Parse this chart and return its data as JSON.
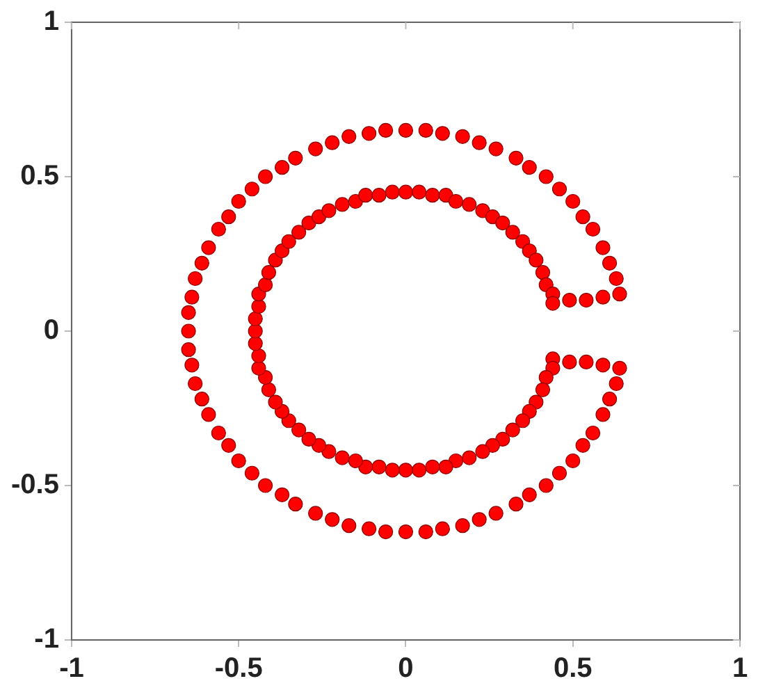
{
  "chart_data": {
    "type": "scatter",
    "marker": "circle",
    "grid": false,
    "xlim": [
      -1,
      1
    ],
    "ylim": [
      -1,
      1
    ],
    "xticks": [
      -1,
      -0.5,
      0,
      0.5,
      1
    ],
    "yticks": [
      -1,
      -0.5,
      0,
      0.5,
      1
    ],
    "series": [
      {
        "color": "#ff0000",
        "x": [
          0.64,
          0.63,
          0.61,
          0.59,
          0.56,
          0.53,
          0.5,
          0.46,
          0.42,
          0.37,
          0.33,
          0.27,
          0.22,
          0.17,
          0.11,
          0.06,
          0,
          -0.06,
          -0.11,
          -0.17,
          -0.22,
          -0.27,
          -0.33,
          -0.37,
          -0.42,
          -0.46,
          -0.5,
          -0.53,
          -0.56,
          -0.59,
          -0.61,
          -0.63,
          -0.64,
          -0.65,
          -0.65,
          -0.65,
          -0.64,
          -0.63,
          -0.61,
          -0.59,
          -0.56,
          -0.53,
          -0.5,
          -0.46,
          -0.42,
          -0.37,
          -0.33,
          -0.27,
          -0.22,
          -0.17,
          -0.11,
          -0.06,
          0,
          0.06,
          0.11,
          0.17,
          0.22,
          0.27,
          0.33,
          0.37,
          0.42,
          0.46,
          0.5,
          0.53,
          0.56,
          0.59,
          0.61,
          0.63,
          0.64,
          0.59,
          0.54,
          0.49,
          0.44,
          0.44,
          0.42,
          0.41,
          0.39,
          0.37,
          0.35,
          0.32,
          0.29,
          0.26,
          0.23,
          0.19,
          0.15,
          0.12,
          0.08,
          0.04,
          0,
          -0.04,
          -0.08,
          -0.12,
          -0.15,
          -0.19,
          -0.23,
          -0.26,
          -0.29,
          -0.32,
          -0.35,
          -0.37,
          -0.39,
          -0.41,
          -0.42,
          -0.44,
          -0.44,
          -0.45,
          -0.45,
          -0.45,
          -0.44,
          -0.44,
          -0.42,
          -0.41,
          -0.39,
          -0.37,
          -0.35,
          -0.32,
          -0.29,
          -0.26,
          -0.23,
          -0.19,
          -0.15,
          -0.12,
          -0.08,
          -0.04,
          0,
          0.04,
          0.08,
          0.12,
          0.15,
          0.19,
          0.23,
          0.26,
          0.29,
          0.32,
          0.35,
          0.37,
          0.39,
          0.41,
          0.42,
          0.44,
          0.44,
          0.49,
          0.54,
          0.59
        ],
        "values": [
          0.12,
          0.17,
          0.22,
          0.27,
          0.33,
          0.37,
          0.42,
          0.46,
          0.5,
          0.53,
          0.56,
          0.59,
          0.61,
          0.63,
          0.64,
          0.65,
          0.65,
          0.65,
          0.64,
          0.63,
          0.61,
          0.59,
          0.56,
          0.53,
          0.5,
          0.46,
          0.42,
          0.37,
          0.33,
          0.27,
          0.22,
          0.17,
          0.11,
          0.06,
          0,
          -0.06,
          -0.11,
          -0.17,
          -0.22,
          -0.27,
          -0.33,
          -0.37,
          -0.42,
          -0.46,
          -0.5,
          -0.53,
          -0.56,
          -0.59,
          -0.61,
          -0.63,
          -0.64,
          -0.65,
          -0.65,
          -0.65,
          -0.64,
          -0.63,
          -0.61,
          -0.59,
          -0.56,
          -0.53,
          -0.5,
          -0.46,
          -0.42,
          -0.37,
          -0.33,
          -0.27,
          -0.22,
          -0.17,
          -0.12,
          -0.11,
          -0.1,
          -0.1,
          -0.09,
          -0.12,
          -0.15,
          -0.19,
          -0.23,
          -0.26,
          -0.29,
          -0.32,
          -0.35,
          -0.37,
          -0.39,
          -0.41,
          -0.42,
          -0.44,
          -0.44,
          -0.45,
          -0.45,
          -0.45,
          -0.44,
          -0.44,
          -0.42,
          -0.41,
          -0.39,
          -0.37,
          -0.35,
          -0.32,
          -0.29,
          -0.26,
          -0.23,
          -0.19,
          -0.15,
          -0.12,
          -0.08,
          -0.04,
          0,
          0.04,
          0.08,
          0.12,
          0.15,
          0.19,
          0.23,
          0.26,
          0.29,
          0.32,
          0.35,
          0.37,
          0.39,
          0.41,
          0.42,
          0.44,
          0.44,
          0.45,
          0.45,
          0.45,
          0.44,
          0.44,
          0.42,
          0.41,
          0.39,
          0.37,
          0.35,
          0.32,
          0.29,
          0.26,
          0.23,
          0.19,
          0.15,
          0.12,
          0.09,
          0.1,
          0.1,
          0.11
        ]
      }
    ]
  }
}
